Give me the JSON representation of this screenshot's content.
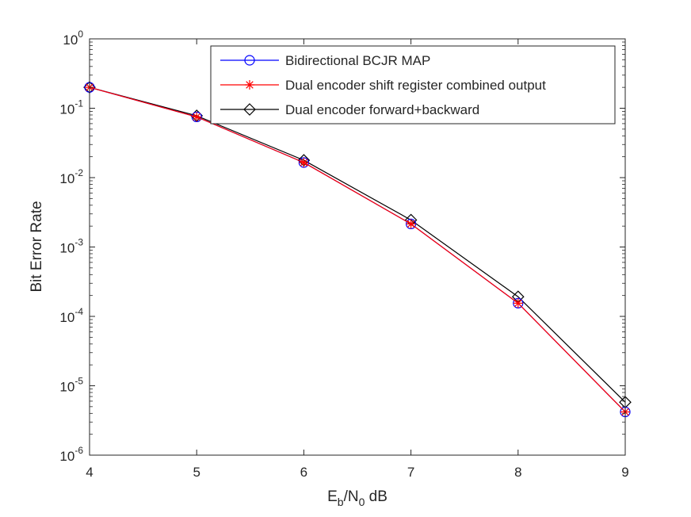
{
  "chart_data": {
    "type": "line",
    "title": "",
    "xlabel": {
      "main": "E",
      "sub1": "b",
      "mid": "/N",
      "sub2": "0",
      "tail": " dB"
    },
    "ylabel": "Bit Error Rate",
    "xlim": [
      4,
      9
    ],
    "ylim": [
      1e-06,
      1
    ],
    "yscale": "log",
    "grid": false,
    "legend_position": "top-right",
    "x": [
      4,
      5,
      6,
      7,
      8,
      9
    ],
    "x_ticks": [
      "4",
      "5",
      "6",
      "7",
      "8",
      "9"
    ],
    "y_ticks": [
      {
        "value": 1,
        "base": "10",
        "exp": "0"
      },
      {
        "value": 0.1,
        "base": "10",
        "exp": "-1"
      },
      {
        "value": 0.01,
        "base": "10",
        "exp": "-2"
      },
      {
        "value": 0.001,
        "base": "10",
        "exp": "-3"
      },
      {
        "value": 0.0001,
        "base": "10",
        "exp": "-4"
      },
      {
        "value": 1e-05,
        "base": "10",
        "exp": "-5"
      },
      {
        "value": 1e-06,
        "base": "10",
        "exp": "-6"
      }
    ],
    "series": [
      {
        "name": "Bidirectional BCJR MAP",
        "color": "#0000ff",
        "marker": "circle",
        "values": [
          0.2,
          0.075,
          0.0165,
          0.00215,
          0.000155,
          4.2e-06
        ]
      },
      {
        "name": "Dual encoder shift register combined output",
        "color": "#ff0000",
        "marker": "asterisk",
        "values": [
          0.2,
          0.075,
          0.0165,
          0.00215,
          0.000155,
          4.2e-06
        ]
      },
      {
        "name": "Dual encoder forward+backward",
        "color": "#000000",
        "marker": "diamond",
        "values": [
          0.2,
          0.078,
          0.0178,
          0.00245,
          0.000192,
          5.8e-06
        ]
      }
    ]
  }
}
